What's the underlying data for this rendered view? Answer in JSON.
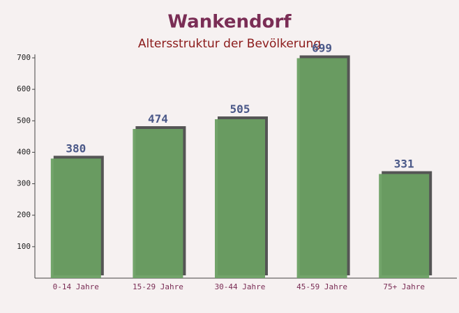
{
  "chart_data": {
    "type": "bar",
    "title": "Wankendorf",
    "subtitle": "Altersstruktur der Bevölkerung",
    "categories": [
      "0-14 Jahre",
      "15-29 Jahre",
      "30-44 Jahre",
      "45-59 Jahre",
      "75+ Jahre"
    ],
    "values": [
      380,
      474,
      505,
      699,
      331
    ],
    "color": "#6a9f62",
    "ylim": [
      0,
      700
    ],
    "yticks": [
      100,
      200,
      300,
      400,
      500,
      600,
      700
    ],
    "grid": false
  }
}
